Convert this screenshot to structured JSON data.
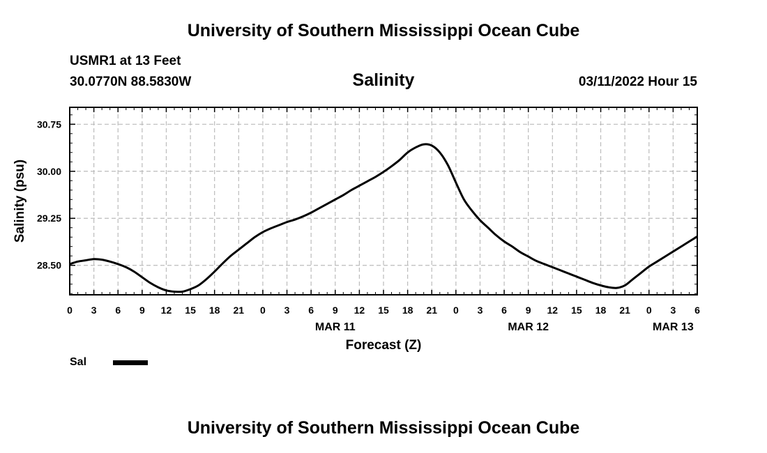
{
  "header": {
    "title": "University of Southern Mississippi Ocean Cube",
    "station": "USMR1 at 13 Feet",
    "coords": "30.0770N  88.5830W",
    "datetime": "03/11/2022 Hour 15"
  },
  "footer": {
    "title": "University of Southern Mississippi Ocean Cube"
  },
  "chart_data": {
    "type": "line",
    "title": "Salinity",
    "xlabel": "Forecast (Z)",
    "ylabel": "Salinity (psu)",
    "x_unit": "forecast hour from MAR 10 00Z",
    "xlim": [
      0,
      78
    ],
    "ylim": [
      28.03,
      31.02
    ],
    "x_ticks": [
      0,
      3,
      6,
      9,
      12,
      15,
      18,
      21,
      24,
      27,
      30,
      33,
      36,
      39,
      42,
      45,
      48,
      51,
      54,
      57,
      60,
      63,
      66,
      69,
      72,
      75,
      78
    ],
    "x_tick_labels": [
      "0",
      "3",
      "6",
      "9",
      "12",
      "15",
      "18",
      "21",
      "0",
      "3",
      "6",
      "9",
      "12",
      "15",
      "18",
      "21",
      "0",
      "3",
      "6",
      "9",
      "12",
      "15",
      "18",
      "21",
      "0",
      "3",
      "6"
    ],
    "date_labels": [
      {
        "x": 33,
        "label": "MAR 11"
      },
      {
        "x": 57,
        "label": "MAR 12"
      },
      {
        "x": 75,
        "label": "MAR 13"
      }
    ],
    "y_ticks": [
      28.5,
      29.25,
      30.0,
      30.75
    ],
    "y_tick_labels": [
      "28.50",
      "29.25",
      "30.00",
      "30.75"
    ],
    "grid": true,
    "series": [
      {
        "name": "Sal",
        "color": "#000000",
        "x": [
          0,
          1,
          2,
          3,
          4,
          5,
          6,
          7,
          8,
          9,
          10,
          11,
          12,
          13,
          14,
          15,
          16,
          17,
          18,
          19,
          20,
          21,
          22,
          23,
          24,
          25,
          26,
          27,
          28,
          29,
          30,
          31,
          32,
          33,
          34,
          35,
          36,
          37,
          38,
          39,
          40,
          41,
          42,
          43,
          44,
          45,
          46,
          47,
          48,
          49,
          50,
          51,
          52,
          53,
          54,
          55,
          56,
          57,
          58,
          59,
          60,
          61,
          62,
          63,
          64,
          65,
          66,
          67,
          68,
          69,
          70,
          71,
          72,
          73,
          74,
          75,
          76,
          77,
          78
        ],
        "values": [
          28.52,
          28.56,
          28.58,
          28.6,
          28.59,
          28.56,
          28.52,
          28.47,
          28.4,
          28.31,
          28.22,
          28.15,
          28.1,
          28.08,
          28.08,
          28.12,
          28.18,
          28.28,
          28.4,
          28.53,
          28.65,
          28.75,
          28.85,
          28.95,
          29.03,
          29.09,
          29.14,
          29.19,
          29.23,
          29.28,
          29.34,
          29.41,
          29.48,
          29.55,
          29.62,
          29.7,
          29.77,
          29.84,
          29.91,
          29.99,
          30.08,
          30.18,
          30.3,
          30.38,
          30.43,
          30.41,
          30.3,
          30.1,
          29.82,
          29.55,
          29.37,
          29.22,
          29.1,
          28.98,
          28.88,
          28.8,
          28.71,
          28.64,
          28.57,
          28.52,
          28.47,
          28.42,
          28.37,
          28.32,
          28.27,
          28.22,
          28.18,
          28.15,
          28.14,
          28.18,
          28.28,
          28.38,
          28.48,
          28.56,
          28.64,
          28.72,
          28.8,
          28.88,
          28.96
        ]
      }
    ]
  },
  "legend": {
    "label": "Sal"
  }
}
